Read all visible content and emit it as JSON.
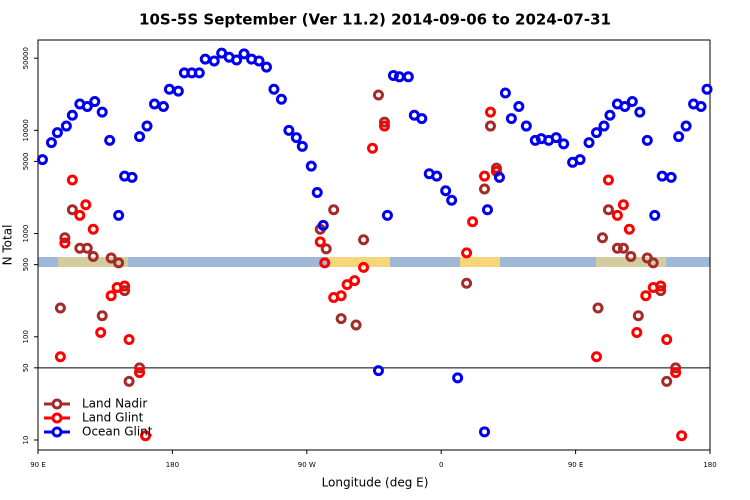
{
  "chart_data": {
    "type": "scatter",
    "title": "10S-5S September (Ver 11.2)   2014-09-06 to 2024-07-31",
    "xlabel": "Longitude (deg E)",
    "ylabel": "N Total",
    "xlim": [
      -270,
      180
    ],
    "xticks": [
      {
        "value": -270,
        "label": "90 E"
      },
      {
        "value": -180,
        "label": "180"
      },
      {
        "value": -90,
        "label": "90 W"
      },
      0,
      {
        "value": 90,
        "label": "90 E"
      },
      {
        "value": 180,
        "label": "180"
      }
    ],
    "ylim": [
      8,
      75000
    ],
    "yscale": "log",
    "yticks": [
      10,
      50,
      100,
      500,
      1000,
      5000,
      10000,
      50000
    ],
    "hline": 50,
    "legend": "lower left",
    "series": [
      {
        "name": "Land Nadir",
        "color": "#a52a2a",
        "x": [
          -255,
          -252,
          -247,
          -242,
          -237,
          -233,
          -227,
          -221,
          -216,
          -212,
          -209,
          -202,
          -81,
          -77,
          -72,
          -67,
          -57,
          -52,
          -42,
          -38,
          17,
          29,
          33,
          37,
          105,
          108,
          112,
          118,
          122,
          127,
          132,
          138,
          142,
          147,
          151,
          157
        ],
        "values": [
          190,
          910,
          1700,
          720,
          720,
          600,
          160,
          580,
          520,
          280,
          37,
          50,
          1100,
          710,
          1700,
          150,
          130,
          870,
          22000,
          12000,
          330,
          2700,
          11000,
          4300,
          190,
          910,
          1700,
          720,
          720,
          600,
          160,
          580,
          520,
          280,
          37,
          50
        ]
      },
      {
        "name": "Land Glint",
        "color": "#ff0000",
        "x": [
          -255,
          -252,
          -247,
          -242,
          -238,
          -233,
          -228,
          -221,
          -217,
          -212,
          -209,
          -202,
          -198,
          -81,
          -78,
          -72,
          -67,
          -63,
          -58,
          -52,
          -46,
          -38,
          17,
          21,
          29,
          33,
          37,
          104,
          112,
          118,
          122,
          126,
          131,
          137,
          142,
          147,
          151,
          157,
          161
        ],
        "values": [
          64,
          810,
          3300,
          1500,
          1900,
          1100,
          110,
          250,
          300,
          310,
          94,
          45,
          11,
          830,
          520,
          240,
          250,
          320,
          350,
          470,
          6700,
          11000,
          650,
          1300,
          3600,
          15000,
          4000,
          64,
          3300,
          1500,
          1900,
          1100,
          110,
          250,
          300,
          310,
          94,
          45,
          11
        ]
      },
      {
        "name": "Ocean Glint",
        "color": "#0000ee",
        "x": [
          -267,
          -261,
          -257,
          -251,
          -247,
          -242,
          -237,
          -232,
          -227,
          -222,
          -216,
          -212,
          -207,
          -202,
          -197,
          -192,
          -186,
          -182,
          -176,
          -172,
          -167,
          -162,
          -158,
          -152,
          -147,
          -142,
          -137,
          -132,
          -127,
          -122,
          -117,
          -112,
          -107,
          -102,
          -97,
          -93,
          -87,
          -83,
          -79,
          -42,
          -36,
          -32,
          -28,
          -22,
          -18,
          -13,
          -8,
          -3,
          3,
          7,
          11,
          29,
          31,
          39,
          43,
          47,
          52,
          57,
          63,
          67,
          72,
          77,
          82,
          88,
          93,
          99,
          104,
          109,
          113,
          118,
          123,
          128,
          133,
          138,
          143,
          148,
          154,
          159,
          164,
          169,
          174,
          178
        ],
        "values": [
          5200,
          7600,
          9500,
          11000,
          14000,
          18000,
          17000,
          19000,
          15000,
          8000,
          1500,
          3600,
          3500,
          8700,
          11000,
          18000,
          17000,
          25000,
          24000,
          36000,
          36000,
          36000,
          49000,
          47000,
          56000,
          51000,
          48000,
          55000,
          49000,
          47000,
          41000,
          25000,
          20000,
          10000,
          8500,
          7000,
          4500,
          2500,
          1200,
          47,
          1500,
          34000,
          33000,
          33000,
          14000,
          13000,
          3800,
          3600,
          2600,
          2100,
          40,
          12,
          1700,
          3500,
          23000,
          13000,
          17000,
          11000,
          8000,
          8300,
          8000,
          8500,
          7400,
          4900,
          5200,
          7600,
          9500,
          11000,
          14000,
          18000,
          17000,
          19000,
          15000,
          8000,
          1500,
          3600,
          3500,
          8700,
          11000,
          18000,
          17000,
          25000
        ]
      }
    ]
  }
}
